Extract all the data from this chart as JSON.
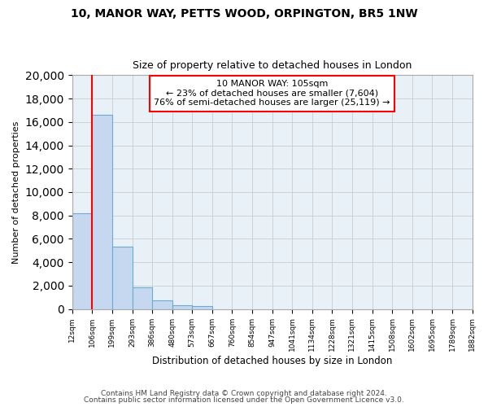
{
  "title1": "10, MANOR WAY, PETTS WOOD, ORPINGTON, BR5 1NW",
  "title2": "Size of property relative to detached houses in London",
  "xlabel": "Distribution of detached houses by size in London",
  "ylabel": "Number of detached properties",
  "bar_edges": [
    12,
    106,
    199,
    293,
    386,
    480,
    573,
    667,
    760,
    854,
    947,
    1041,
    1134,
    1228,
    1321,
    1415,
    1508,
    1602,
    1695,
    1789,
    1882
  ],
  "bar_heights": [
    8200,
    16600,
    5300,
    1850,
    750,
    310,
    220,
    0,
    0,
    0,
    0,
    0,
    0,
    0,
    0,
    0,
    0,
    0,
    0,
    0
  ],
  "bar_color": "#c5d8f0",
  "bar_edge_color": "#6aaad4",
  "plot_bg_color": "#e8f0f8",
  "property_line_x": 106,
  "property_line_color": "red",
  "annotation_title": "10 MANOR WAY: 105sqm",
  "annotation_line1": "← 23% of detached houses are smaller (7,604)",
  "annotation_line2": "76% of semi-detached houses are larger (25,119) →",
  "annotation_box_color": "white",
  "annotation_box_edge": "red",
  "ylim": [
    0,
    20000
  ],
  "yticks": [
    0,
    2000,
    4000,
    6000,
    8000,
    10000,
    12000,
    14000,
    16000,
    18000,
    20000
  ],
  "tick_labels": [
    "12sqm",
    "106sqm",
    "199sqm",
    "293sqm",
    "386sqm",
    "480sqm",
    "573sqm",
    "667sqm",
    "760sqm",
    "854sqm",
    "947sqm",
    "1041sqm",
    "1134sqm",
    "1228sqm",
    "1321sqm",
    "1415sqm",
    "1508sqm",
    "1602sqm",
    "1695sqm",
    "1789sqm",
    "1882sqm"
  ],
  "footer1": "Contains HM Land Registry data © Crown copyright and database right 2024.",
  "footer2": "Contains public sector information licensed under the Open Government Licence v3.0.",
  "bg_color": "white",
  "grid_color": "#cccccc"
}
